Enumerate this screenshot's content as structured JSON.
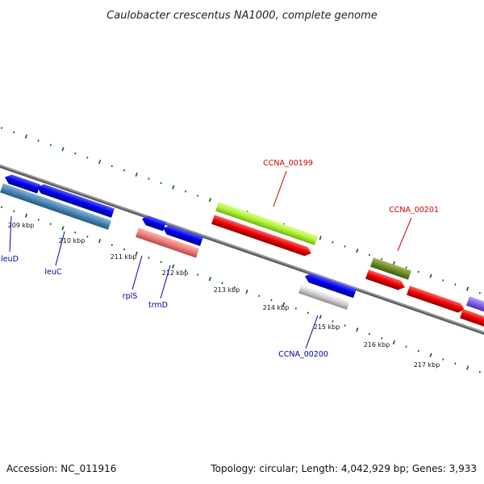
{
  "title": "Caulobacter crescentus NA1000, complete genome",
  "footer": {
    "accession": "Accession: NC_011916",
    "summary": "Topology: circular; Length: 4,042,929 bp; Genes: 3,933"
  },
  "ticks": [
    {
      "label": "209 kbp"
    },
    {
      "label": "210 kbp"
    },
    {
      "label": "211 kbp"
    },
    {
      "label": "212 kbp"
    },
    {
      "label": "213 kbp"
    },
    {
      "label": "214 kbp"
    },
    {
      "label": "215 kbp"
    },
    {
      "label": "216 kbp"
    },
    {
      "label": "217 kbp"
    }
  ],
  "labels": [
    {
      "text": "leuD",
      "color": "#0000aa"
    },
    {
      "text": "leuC",
      "color": "#0000aa"
    },
    {
      "text": "rplS",
      "color": "#0000aa"
    },
    {
      "text": "trmD",
      "color": "#0000aa"
    },
    {
      "text": "CCNA_00199",
      "color": "#cc0000"
    },
    {
      "text": "CCNA_00200",
      "color": "#0000aa"
    },
    {
      "text": "CCNA_00201",
      "color": "#cc0000"
    }
  ],
  "colors": {
    "cds": "#0000ee",
    "cds_reverse": "#ee0000",
    "backbone": "#888888",
    "gc_ticks": "#006600"
  }
}
